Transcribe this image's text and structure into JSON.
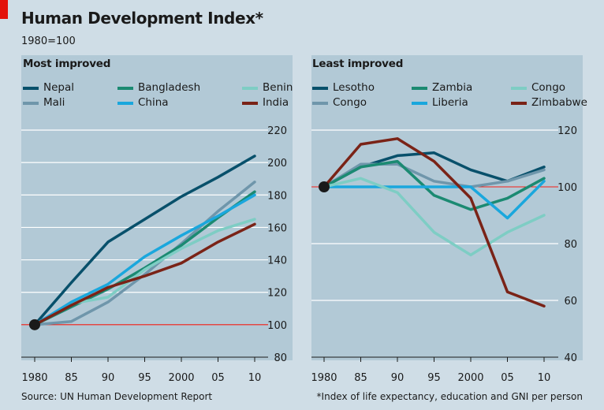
{
  "header": {
    "title": "Human Development Index*",
    "subtitle": "1980=100"
  },
  "footer": {
    "source": "Source: UN Human Development Report",
    "footnote": "*Index of life expectancy, education and GNI per person"
  },
  "colors": {
    "background": "#cfdde6",
    "panel": "#b2c9d6",
    "grid": "#ffffff",
    "baseline": "#e3120b",
    "accent": "#e3120b"
  },
  "chart_data": [
    {
      "type": "line",
      "title": "Most improved",
      "x": [
        1980,
        1985,
        1990,
        1995,
        2000,
        2005,
        2010
      ],
      "xtick_labels": [
        "1980",
        "85",
        "90",
        "95",
        "2000",
        "05",
        "10"
      ],
      "ylim": [
        80,
        220
      ],
      "yticks": [
        80,
        100,
        120,
        140,
        160,
        180,
        200,
        220
      ],
      "baseline": 100,
      "legend": "top",
      "grid": true,
      "series": [
        {
          "name": "Nepal",
          "color": "#08506b",
          "values": [
            100,
            126,
            151,
            165,
            179,
            191,
            204
          ]
        },
        {
          "name": "Mali",
          "color": "#6f96ab",
          "values": [
            100,
            102,
            114,
            131,
            150,
            170,
            188
          ]
        },
        {
          "name": "Bangladesh",
          "color": "#1b8a72",
          "values": [
            100,
            111,
            122,
            135,
            149,
            166,
            182
          ]
        },
        {
          "name": "Benin",
          "color": "#7ecdc4",
          "values": [
            100,
            113,
            117,
            134,
            147,
            158,
            165
          ]
        },
        {
          "name": "China",
          "color": "#1aa7dd",
          "values": [
            100,
            114,
            125,
            142,
            155,
            167,
            180
          ]
        },
        {
          "name": "India",
          "color": "#7a2317",
          "values": [
            100,
            112,
            123,
            130,
            138,
            151,
            162
          ]
        }
      ]
    },
    {
      "type": "line",
      "title": "Least improved",
      "x": [
        1980,
        1985,
        1990,
        1995,
        2000,
        2005,
        2010
      ],
      "xtick_labels": [
        "1980",
        "85",
        "90",
        "95",
        "2000",
        "05",
        "10"
      ],
      "ylim": [
        40,
        120
      ],
      "yticks": [
        40,
        60,
        80,
        100,
        120
      ],
      "baseline": 100,
      "legend": "top",
      "grid": true,
      "series": [
        {
          "name": "Lesotho",
          "color": "#08506b",
          "values": [
            100,
            107,
            111,
            112,
            106,
            102,
            107
          ]
        },
        {
          "name": "Congo",
          "color": "#6f96ab",
          "values": [
            100,
            108,
            108,
            102,
            100,
            102,
            106
          ]
        },
        {
          "name": "Zambia",
          "color": "#1b8a72",
          "values": [
            100,
            107,
            109,
            97,
            92,
            96,
            103
          ]
        },
        {
          "name": "Liberia",
          "color": "#1aa7dd",
          "values": [
            100,
            100,
            100,
            100,
            100,
            89,
            102
          ]
        },
        {
          "name": "Congo",
          "color": "#7ecdc4",
          "values": [
            100,
            103,
            98,
            84,
            76,
            84,
            90
          ]
        },
        {
          "name": "Zimbabwe",
          "color": "#7a2317",
          "values": [
            100,
            115,
            117,
            109,
            96,
            63,
            58
          ]
        }
      ]
    }
  ]
}
